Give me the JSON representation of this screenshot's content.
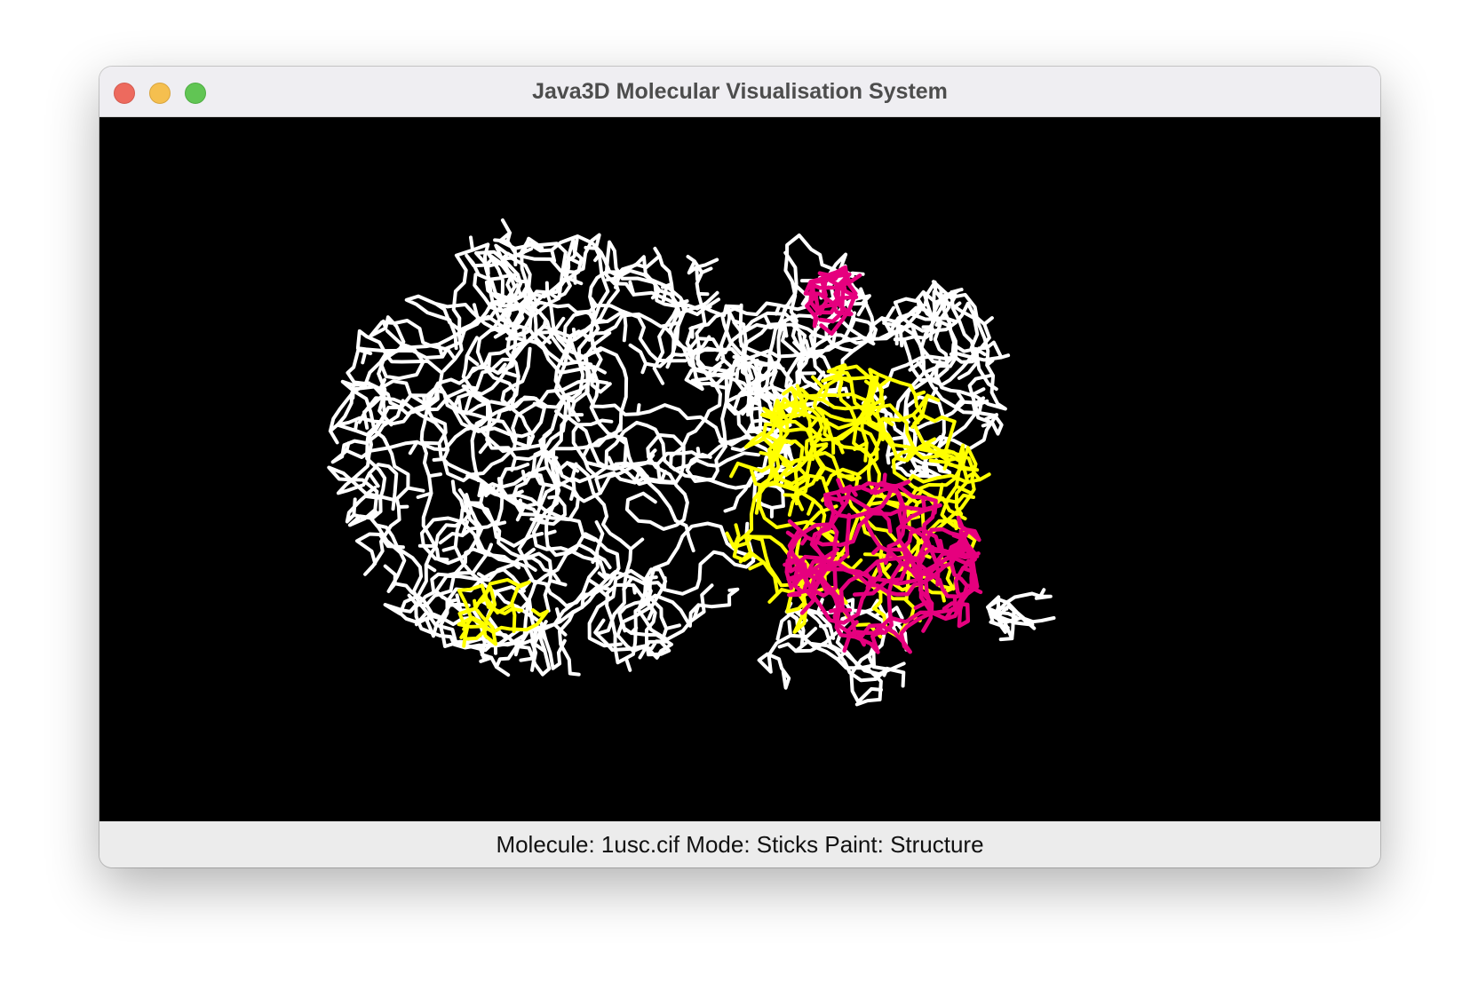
{
  "window": {
    "title": "Java3D Molecular Visualisation System",
    "controls": [
      "close",
      "minimize",
      "zoom"
    ]
  },
  "viewport": {
    "background": "#000000",
    "rendering": "Sticks",
    "colors": {
      "coil": "#ffffff",
      "sheet": "#ffff00",
      "helix": "#e6007e"
    }
  },
  "status": {
    "text": "Molecule: 1usc.cif Mode: Sticks Paint: Structure"
  }
}
